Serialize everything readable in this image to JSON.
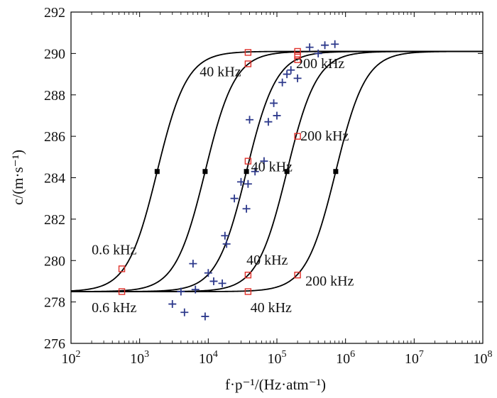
{
  "chart_data": {
    "type": "scatter",
    "xscale": "log",
    "xlim": [
      100,
      100000000
    ],
    "ylim": [
      276,
      292
    ],
    "grid": false,
    "ylabel": "c/(m·s⁻¹)",
    "xlabel": "f·p⁻¹/(Hz·atm⁻¹)",
    "x_ticks": [
      {
        "value": 100,
        "base": "10",
        "exp": "2"
      },
      {
        "value": 1000,
        "base": "10",
        "exp": "3"
      },
      {
        "value": 10000,
        "base": "10",
        "exp": "4"
      },
      {
        "value": 100000,
        "base": "10",
        "exp": "5"
      },
      {
        "value": 1000000,
        "base": "10",
        "exp": "6"
      },
      {
        "value": 10000000,
        "base": "10",
        "exp": "7"
      },
      {
        "value": 100000000,
        "base": "10",
        "exp": "8"
      }
    ],
    "y_ticks": [
      "276",
      "278",
      "280",
      "282",
      "284",
      "286",
      "288",
      "290",
      "292"
    ],
    "curves": {
      "c0": 278.5,
      "cinf": 290.1,
      "midpoints": [
        1800,
        9000,
        36000,
        140000,
        720000
      ]
    },
    "midpoint_markers": [
      {
        "x": 1800,
        "y": 284.3
      },
      {
        "x": 9000,
        "y": 284.3
      },
      {
        "x": 36000,
        "y": 284.3
      },
      {
        "x": 140000,
        "y": 284.3
      },
      {
        "x": 720000,
        "y": 284.3
      }
    ],
    "squares": [
      {
        "x": 550,
        "y": 279.6
      },
      {
        "x": 550,
        "y": 278.5
      },
      {
        "x": 38000,
        "y": 290.05
      },
      {
        "x": 38000,
        "y": 289.5
      },
      {
        "x": 38000,
        "y": 284.8
      },
      {
        "x": 38000,
        "y": 279.3
      },
      {
        "x": 38000,
        "y": 278.5
      },
      {
        "x": 200000,
        "y": 290.1
      },
      {
        "x": 200000,
        "y": 289.9
      },
      {
        "x": 200000,
        "y": 289.7
      },
      {
        "x": 200000,
        "y": 286.0
      },
      {
        "x": 200000,
        "y": 279.3
      }
    ],
    "crosses": [
      {
        "x": 3000,
        "y": 277.9
      },
      {
        "x": 4000,
        "y": 278.5
      },
      {
        "x": 4500,
        "y": 277.5
      },
      {
        "x": 6000,
        "y": 279.85
      },
      {
        "x": 6500,
        "y": 278.6
      },
      {
        "x": 9000,
        "y": 277.3
      },
      {
        "x": 10000,
        "y": 279.4
      },
      {
        "x": 12000,
        "y": 279.0
      },
      {
        "x": 16000,
        "y": 278.9
      },
      {
        "x": 17500,
        "y": 281.2
      },
      {
        "x": 18500,
        "y": 280.8
      },
      {
        "x": 24000,
        "y": 283.0
      },
      {
        "x": 30000,
        "y": 283.8
      },
      {
        "x": 36000,
        "y": 282.5
      },
      {
        "x": 38000,
        "y": 283.7
      },
      {
        "x": 40000,
        "y": 286.8
      },
      {
        "x": 48000,
        "y": 284.3
      },
      {
        "x": 65000,
        "y": 284.8
      },
      {
        "x": 75000,
        "y": 286.7
      },
      {
        "x": 90000,
        "y": 287.6
      },
      {
        "x": 100000,
        "y": 287.0
      },
      {
        "x": 120000,
        "y": 288.6
      },
      {
        "x": 140000,
        "y": 289.0
      },
      {
        "x": 160000,
        "y": 289.2
      },
      {
        "x": 200000,
        "y": 288.8
      },
      {
        "x": 300000,
        "y": 290.3
      },
      {
        "x": 400000,
        "y": 290.0
      },
      {
        "x": 500000,
        "y": 290.4
      },
      {
        "x": 700000,
        "y": 290.45
      }
    ],
    "annotations": [
      {
        "text": "0.6 kHz",
        "x": 200,
        "y": 280.3
      },
      {
        "text": "0.6 kHz",
        "x": 200,
        "y": 277.5
      },
      {
        "text": "40 kHz",
        "x": 7500,
        "y": 288.9
      },
      {
        "text": "40 kHz",
        "x": 42000,
        "y": 284.3
      },
      {
        "text": "40 kHz",
        "x": 36000,
        "y": 279.8
      },
      {
        "text": "40 kHz",
        "x": 41000,
        "y": 277.5
      },
      {
        "text": "200 kHz",
        "x": 190000,
        "y": 289.3
      },
      {
        "text": "200 kHz",
        "x": 220000,
        "y": 285.8
      },
      {
        "text": "200 kHz",
        "x": 260000,
        "y": 278.8
      }
    ],
    "colors": {
      "curve": "#000000",
      "square": "#e0302a",
      "cross": "#2e3a8c"
    }
  }
}
